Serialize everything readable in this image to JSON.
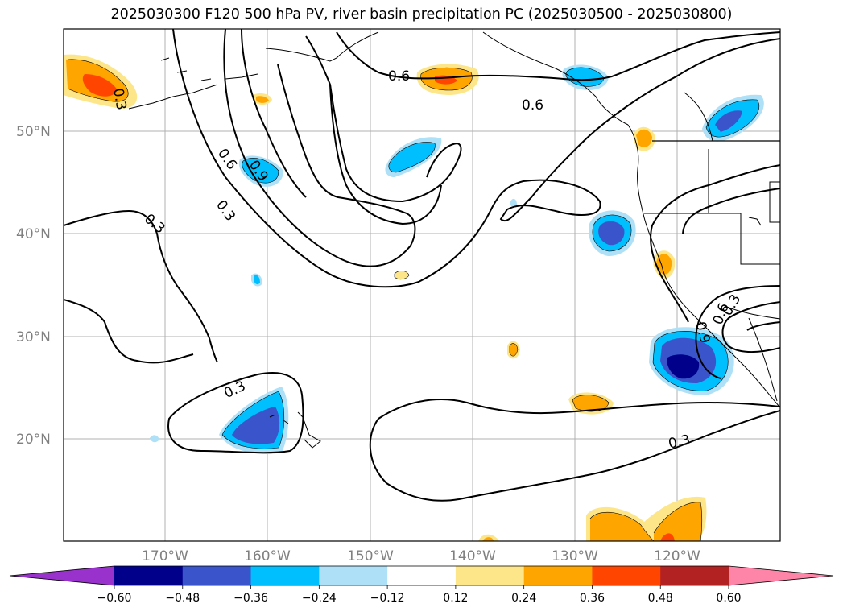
{
  "title": "2025030300 F120 500 hPa PV, river basin precipitation PC (2025030500 - 2025030800)",
  "lat_labels": [
    "50°N",
    "40°N",
    "30°N",
    "20°N"
  ],
  "lon_labels": [
    "170°W",
    "160°W",
    "150°W",
    "140°W",
    "130°W",
    "120°W"
  ],
  "contour_labels": [
    "0.6",
    "0.6",
    "0.3",
    "0.6",
    "0.9",
    "0.3",
    "0.3",
    "0.3",
    "0.3",
    "0.6",
    "0.9",
    "0.3"
  ],
  "colorbar": {
    "ticks": [
      "−0.60",
      "−0.48",
      "−0.36",
      "−0.24",
      "−0.12",
      "0.12",
      "0.24",
      "0.36",
      "0.48",
      "0.60"
    ],
    "colors": [
      "#9932cc",
      "#00008b",
      "#3a55cc",
      "#00bfff",
      "#aee0f8",
      "#ffffff",
      "#fde68a",
      "#ffa500",
      "#ff4500",
      "#b22222",
      "#ff85a8"
    ]
  }
}
